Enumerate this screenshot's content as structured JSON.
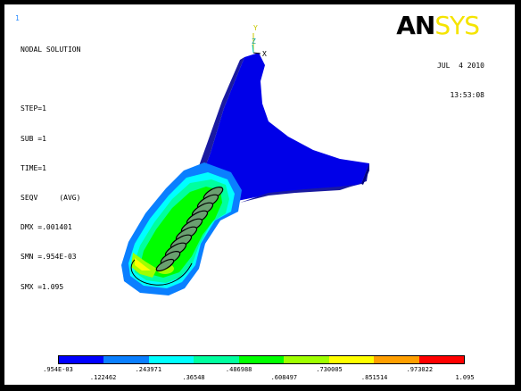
{
  "window_number": "1",
  "info_lines": [
    "NODAL SOLUTION",
    "",
    "STEP=1",
    "SUB =1",
    "TIME=1",
    "SEQV     (AVG)",
    "DMX =.001401",
    "SMN =.954E-03",
    "SMX =1.095"
  ],
  "logo": {
    "part1": "AN",
    "part2": "SYS"
  },
  "date": "JUL  4 2010",
  "time": "13:53:08",
  "axis_labels": {
    "y": "Y",
    "z": "Z",
    "x": "X"
  },
  "legend": {
    "colors": [
      "#0000ff",
      "#0a7fff",
      "#00ffff",
      "#00ff9f",
      "#00ff00",
      "#9fff00",
      "#ffff00",
      "#ff9f00",
      "#ff0000"
    ],
    "top_labels": [
      ".954E-03",
      ".243971",
      ".486988",
      ".730005",
      ".973022"
    ],
    "bottom_labels": [
      ".122462",
      ".36548",
      ".608497",
      ".851514",
      "1.095"
    ]
  }
}
